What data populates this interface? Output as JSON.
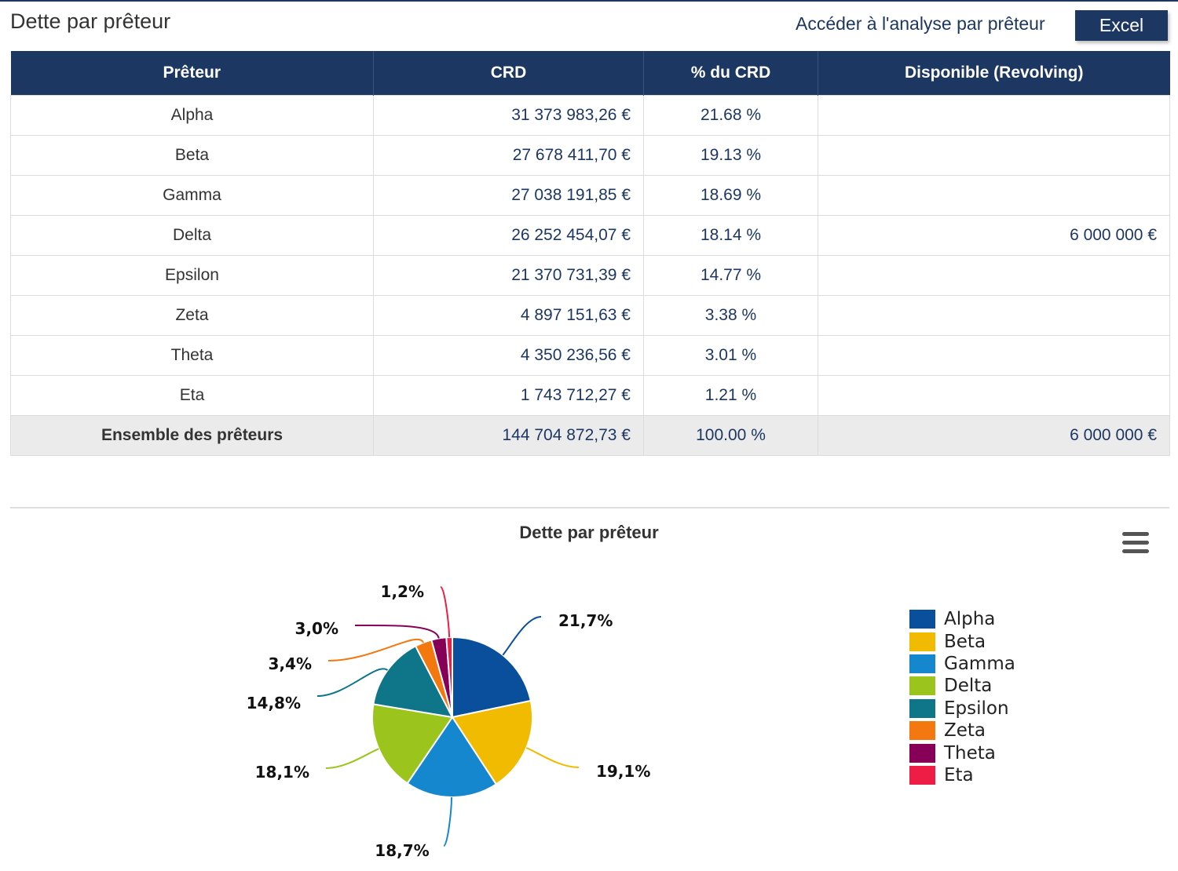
{
  "header": {
    "title": "Dette par prêteur",
    "analysis_link": "Accéder à l'analyse par prêteur",
    "excel_button": "Excel"
  },
  "table": {
    "columns": [
      "Prêteur",
      "CRD",
      "% du CRD",
      "Disponible (Revolving)"
    ],
    "rows": [
      {
        "name": "Alpha",
        "crd": "31 373 983,26 €",
        "pct": "21.68 %",
        "disp": ""
      },
      {
        "name": "Beta",
        "crd": "27 678 411,70 €",
        "pct": "19.13 %",
        "disp": ""
      },
      {
        "name": "Gamma",
        "crd": "27 038 191,85 €",
        "pct": "18.69 %",
        "disp": ""
      },
      {
        "name": "Delta",
        "crd": "26 252 454,07 €",
        "pct": "18.14 %",
        "disp": "6 000 000 €"
      },
      {
        "name": "Epsilon",
        "crd": "21 370 731,39 €",
        "pct": "14.77 %",
        "disp": ""
      },
      {
        "name": "Zeta",
        "crd": "4 897 151,63 €",
        "pct": "3.38 %",
        "disp": ""
      },
      {
        "name": "Theta",
        "crd": "4 350 236,56 €",
        "pct": "3.01 %",
        "disp": ""
      },
      {
        "name": "Eta",
        "crd": "1 743 712,27 €",
        "pct": "1.21 %",
        "disp": ""
      }
    ],
    "total": {
      "name": "Ensemble des prêteurs",
      "crd": "144 704 872,73 €",
      "pct": "100.00 %",
      "disp": "6 000 000 €"
    }
  },
  "chart_data": {
    "type": "pie",
    "title": "Dette par prêteur",
    "legend_position": "right",
    "categories": [
      "Alpha",
      "Beta",
      "Gamma",
      "Delta",
      "Epsilon",
      "Zeta",
      "Theta",
      "Eta"
    ],
    "values": [
      21.7,
      19.1,
      18.7,
      18.1,
      14.8,
      3.4,
      3.0,
      1.2
    ],
    "labels": [
      "21,7%",
      "19,1%",
      "18,7%",
      "18,1%",
      "14,8%",
      "3,4%",
      "3,0%",
      "1,2%"
    ],
    "colors": [
      "#0a4f9c",
      "#f0bb00",
      "#1487cf",
      "#9bc51d",
      "#0f7589",
      "#f3780f",
      "#860058",
      "#ee1d45"
    ]
  }
}
